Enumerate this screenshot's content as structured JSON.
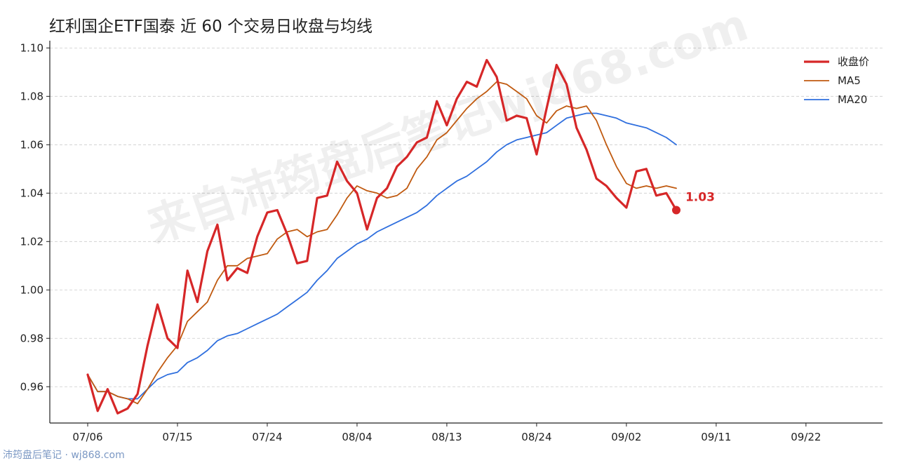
{
  "chart_data": {
    "type": "line",
    "title": "红利国企ETF国泰 近 60 个交易日收盘与均线",
    "xlabel": "",
    "ylabel": "",
    "ylim": [
      0.945,
      1.103
    ],
    "yticks": [
      "1.10",
      "1.08",
      "1.06",
      "1.04",
      "1.02",
      "1.00",
      "0.98",
      "0.96"
    ],
    "xticks": [
      "07/06",
      "07/15",
      "07/24",
      "08/04",
      "08/13",
      "08/24",
      "09/02",
      "09/11",
      "09/22"
    ],
    "xtick_index": [
      0,
      9,
      18,
      27,
      36,
      45,
      54,
      63,
      72
    ],
    "grid": "horizontal dashed",
    "legend_position": "top-right",
    "series": [
      {
        "name": "收盘价",
        "color": "#d62728",
        "values": [
          0.965,
          0.95,
          0.959,
          0.949,
          0.951,
          0.957,
          0.977,
          0.994,
          0.98,
          0.976,
          1.008,
          0.995,
          1.016,
          1.027,
          1.004,
          1.009,
          1.007,
          1.022,
          1.032,
          1.033,
          1.023,
          1.011,
          1.012,
          1.038,
          1.039,
          1.053,
          1.045,
          1.04,
          1.025,
          1.038,
          1.042,
          1.051,
          1.055,
          1.061,
          1.063,
          1.078,
          1.068,
          1.079,
          1.086,
          1.084,
          1.095,
          1.088,
          1.07,
          1.072,
          1.071,
          1.056,
          1.075,
          1.093,
          1.085,
          1.067,
          1.058,
          1.046,
          1.043,
          1.038,
          1.034,
          1.049,
          1.05,
          1.039,
          1.04,
          1.033
        ]
      },
      {
        "name": "MA5",
        "color": "#c05a10",
        "values": [
          0.965,
          0.958,
          0.958,
          0.956,
          0.955,
          0.953,
          0.959,
          0.966,
          0.972,
          0.977,
          0.987,
          0.991,
          0.995,
          1.004,
          1.01,
          1.01,
          1.013,
          1.014,
          1.015,
          1.021,
          1.024,
          1.025,
          1.022,
          1.024,
          1.025,
          1.031,
          1.038,
          1.043,
          1.041,
          1.04,
          1.038,
          1.039,
          1.042,
          1.05,
          1.055,
          1.062,
          1.065,
          1.07,
          1.075,
          1.079,
          1.082,
          1.086,
          1.085,
          1.082,
          1.079,
          1.072,
          1.069,
          1.074,
          1.076,
          1.075,
          1.076,
          1.07,
          1.06,
          1.051,
          1.044,
          1.042,
          1.043,
          1.042,
          1.043,
          1.042
        ]
      },
      {
        "name": "MA20",
        "color": "#2f6fde",
        "values": [
          0.965,
          0.958,
          0.958,
          0.956,
          0.955,
          0.955,
          0.959,
          0.963,
          0.965,
          0.966,
          0.97,
          0.972,
          0.975,
          0.979,
          0.981,
          0.982,
          0.984,
          0.986,
          0.988,
          0.99,
          0.993,
          0.996,
          0.999,
          1.004,
          1.008,
          1.013,
          1.016,
          1.019,
          1.021,
          1.024,
          1.026,
          1.028,
          1.03,
          1.032,
          1.035,
          1.039,
          1.042,
          1.045,
          1.047,
          1.05,
          1.053,
          1.057,
          1.06,
          1.062,
          1.063,
          1.064,
          1.065,
          1.068,
          1.071,
          1.072,
          1.073,
          1.073,
          1.072,
          1.071,
          1.069,
          1.068,
          1.067,
          1.065,
          1.063,
          1.06
        ]
      }
    ],
    "last_value_label": "1.03"
  },
  "watermark": "来自沛筠盘后笔记wj868.com",
  "footer": "沛筠盘后笔记 · wj868.com"
}
